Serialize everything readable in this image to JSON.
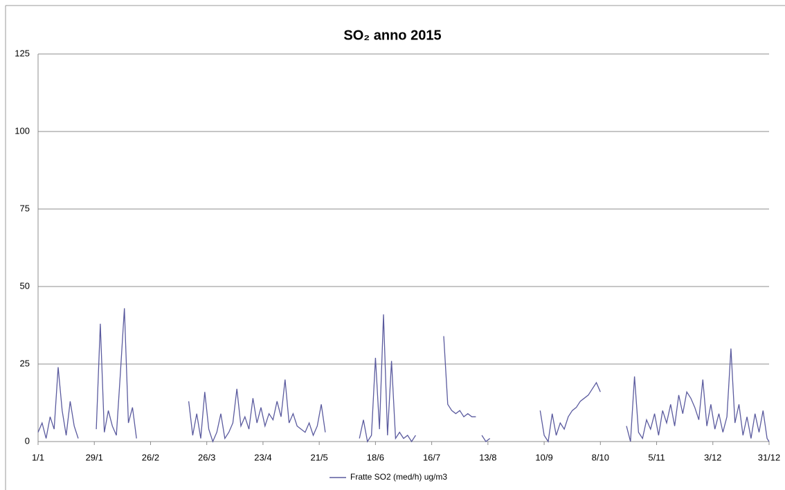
{
  "chart_data": {
    "type": "line",
    "title": "SO₂ anno 2015",
    "x": [
      1,
      3,
      5,
      7,
      9,
      11,
      13,
      15,
      17,
      19,
      21,
      23,
      30,
      32,
      34,
      36,
      38,
      40,
      42,
      44,
      46,
      48,
      50,
      52,
      76,
      78,
      80,
      82,
      84,
      86,
      88,
      90,
      92,
      94,
      96,
      98,
      100,
      102,
      104,
      106,
      108,
      110,
      112,
      114,
      116,
      118,
      120,
      122,
      124,
      126,
      128,
      130,
      132,
      134,
      136,
      138,
      140,
      142,
      144,
      146,
      161,
      163,
      165,
      167,
      169,
      171,
      173,
      175,
      177,
      179,
      181,
      183,
      185,
      187,
      189,
      191,
      203,
      205,
      207,
      209,
      211,
      213,
      215,
      217,
      219,
      220,
      222,
      224,
      226,
      228,
      251,
      253,
      255,
      257,
      259,
      261,
      263,
      265,
      267,
      269,
      271,
      273,
      275,
      277,
      279,
      281,
      283,
      294,
      296,
      298,
      300,
      302,
      304,
      306,
      308,
      310,
      312,
      314,
      316,
      318,
      320,
      322,
      324,
      326,
      328,
      330,
      332,
      334,
      336,
      338,
      340,
      342,
      344,
      346,
      348,
      350,
      352,
      354,
      356,
      358,
      360,
      362,
      364,
      365
    ],
    "series": [
      {
        "name": "Fratte SO2 (med/h) ug/m3",
        "color": "#5a5a9e",
        "values": [
          3,
          6,
          1,
          8,
          4,
          24,
          10,
          2,
          13,
          5,
          1,
          null,
          4,
          38,
          3,
          10,
          5,
          2,
          22,
          43,
          6,
          11,
          1,
          null,
          13,
          2,
          9,
          1,
          16,
          4,
          0,
          3,
          9,
          1,
          3,
          6,
          17,
          5,
          8,
          4,
          14,
          6,
          11,
          5,
          9,
          7,
          13,
          8,
          20,
          6,
          9,
          5,
          4,
          3,
          6,
          2,
          5,
          12,
          3,
          null,
          1,
          7,
          0,
          2,
          27,
          4,
          41,
          2,
          26,
          1,
          3,
          1,
          2,
          0,
          2,
          null,
          34,
          12,
          10,
          9,
          10,
          8,
          9,
          8,
          8,
          null,
          2,
          0,
          1,
          null,
          10,
          2,
          0,
          9,
          2,
          6,
          4,
          8,
          10,
          11,
          13,
          14,
          15,
          17,
          19,
          16,
          null,
          5,
          0,
          21,
          3,
          1,
          7,
          4,
          9,
          2,
          10,
          6,
          12,
          5,
          15,
          9,
          16,
          14,
          11,
          7,
          20,
          5,
          12,
          4,
          9,
          3,
          8,
          30,
          6,
          12,
          2,
          8,
          1,
          9,
          3,
          10,
          1,
          0
        ]
      }
    ],
    "xlim": [
      1,
      365
    ],
    "xticks": [
      {
        "value": 1,
        "label": "1/1"
      },
      {
        "value": 29,
        "label": "29/1"
      },
      {
        "value": 57,
        "label": "26/2"
      },
      {
        "value": 85,
        "label": "26/3"
      },
      {
        "value": 113,
        "label": "23/4"
      },
      {
        "value": 141,
        "label": "21/5"
      },
      {
        "value": 169,
        "label": "18/6"
      },
      {
        "value": 197,
        "label": "16/7"
      },
      {
        "value": 225,
        "label": "13/8"
      },
      {
        "value": 253,
        "label": "10/9"
      },
      {
        "value": 281,
        "label": "8/10"
      },
      {
        "value": 309,
        "label": "5/11"
      },
      {
        "value": 337,
        "label": "3/12"
      },
      {
        "value": 365,
        "label": "31/12"
      }
    ],
    "ylim": [
      0,
      125
    ],
    "yticks": [
      0,
      25,
      50,
      75,
      100,
      125
    ],
    "grid": true,
    "legend": "bottom"
  }
}
